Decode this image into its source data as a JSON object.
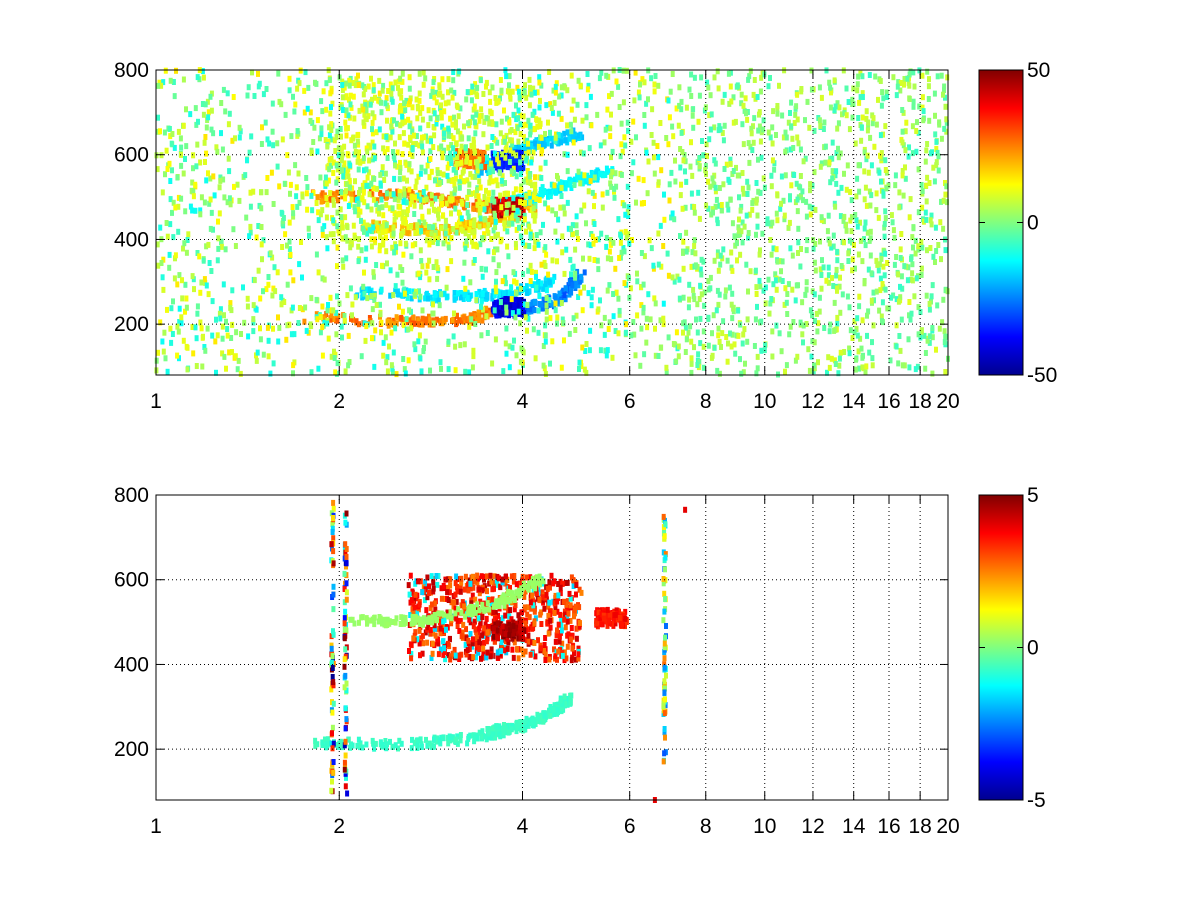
{
  "chart_data": [
    {
      "type": "heatmap",
      "title": "",
      "xlabel": "",
      "ylabel": "",
      "x_axis": {
        "scale": "log",
        "range": [
          1,
          20
        ],
        "ticks": [
          1,
          2,
          4,
          6,
          8,
          10,
          12,
          14,
          16,
          18,
          20
        ],
        "tick_labels": [
          "1",
          "2",
          "4",
          "6",
          "8",
          "10",
          "12",
          "14",
          "16",
          "18",
          "20"
        ]
      },
      "y_axis": {
        "scale": "linear",
        "range": [
          80,
          800
        ],
        "ticks": [
          200,
          400,
          600,
          800
        ],
        "tick_labels": [
          "200",
          "400",
          "600",
          "800"
        ]
      },
      "grid": "on",
      "grid_style": "dotted",
      "colormap": "jet",
      "colorbar": {
        "placement": "right",
        "range": [
          -50,
          50
        ],
        "tick_values": [
          50,
          0,
          -50
        ],
        "tick_labels": [
          "50",
          "0",
          "-50"
        ]
      },
      "background_where_missing": "white",
      "features": [
        {
          "kind": "arc",
          "x": [
            1.75,
            2.6,
            3.3,
            3.8
          ],
          "y": [
            215,
            205,
            212,
            245
          ],
          "value": 30
        },
        {
          "kind": "arc",
          "x": [
            3.6,
            4.0,
            4.6,
            5.0
          ],
          "y": [
            235,
            232,
            260,
            315
          ],
          "value": -30
        },
        {
          "kind": "arc",
          "x": [
            2.1,
            3.0,
            3.8,
            4.5
          ],
          "y": [
            275,
            265,
            270,
            305
          ],
          "value": -18
        },
        {
          "kind": "arc",
          "x": [
            1.8,
            2.5,
            3.2,
            3.8
          ],
          "y": [
            500,
            505,
            485,
            470
          ],
          "value": 30
        },
        {
          "kind": "arc",
          "x": [
            2.2,
            2.9,
            3.5,
            4.2
          ],
          "y": [
            430,
            420,
            440,
            475
          ],
          "value": 22
        },
        {
          "kind": "arc",
          "x": [
            3.6,
            4.2,
            4.9,
            5.6
          ],
          "y": [
            480,
            500,
            540,
            560
          ],
          "value": -15
        },
        {
          "kind": "arc",
          "x": [
            3.4,
            3.8,
            4.3,
            5.0
          ],
          "y": [
            560,
            600,
            625,
            650
          ],
          "value": -20
        },
        {
          "kind": "blob",
          "x": 3.8,
          "y": 475,
          "value": 48
        },
        {
          "kind": "blob",
          "x": 3.8,
          "y": 585,
          "value": -38
        },
        {
          "kind": "blob",
          "x": 3.8,
          "y": 240,
          "value": -45
        },
        {
          "kind": "blob",
          "x": 3.3,
          "y": 590,
          "value": 30
        },
        {
          "kind": "region",
          "x_range": [
            1.9,
            4.3
          ],
          "y_range": [
            380,
            780
          ],
          "value": 12
        },
        {
          "kind": "noise",
          "x_range": [
            1,
            7.2
          ],
          "y_range": [
            80,
            800
          ],
          "value_range": [
            -12,
            15
          ]
        },
        {
          "kind": "sparse_noise",
          "x_range": [
            7.2,
            20
          ],
          "y_range": [
            80,
            800
          ],
          "value_range": [
            -8,
            10
          ]
        }
      ]
    },
    {
      "type": "heatmap",
      "title": "",
      "xlabel": "",
      "ylabel": "",
      "x_axis": {
        "scale": "log",
        "range": [
          1,
          20
        ],
        "ticks": [
          1,
          2,
          4,
          6,
          8,
          10,
          12,
          14,
          16,
          18,
          20
        ],
        "tick_labels": [
          "1",
          "2",
          "4",
          "6",
          "8",
          "10",
          "12",
          "14",
          "16",
          "18",
          "20"
        ]
      },
      "y_axis": {
        "scale": "linear",
        "range": [
          80,
          800
        ],
        "ticks": [
          200,
          400,
          600,
          800
        ],
        "tick_labels": [
          "200",
          "400",
          "600",
          "800"
        ]
      },
      "grid": "on",
      "grid_style": "dotted",
      "colormap": "jet",
      "colorbar": {
        "placement": "right",
        "range": [
          -5,
          5
        ],
        "tick_values": [
          5,
          0,
          -5
        ],
        "tick_labels": [
          "5",
          "0",
          "-5"
        ]
      },
      "background_where_missing": "white",
      "features": [
        {
          "kind": "arc",
          "x": [
            1.8,
            2.6,
            3.4,
            4.2
          ],
          "y": [
            215,
            210,
            228,
            265
          ],
          "value": -0.8
        },
        {
          "kind": "arc",
          "x": [
            3.5,
            4.0,
            4.5,
            4.8
          ],
          "y": [
            240,
            255,
            290,
            320
          ],
          "value": -0.8
        },
        {
          "kind": "region",
          "x_range": [
            2.6,
            5.0
          ],
          "y_range": [
            410,
            610
          ],
          "value": 4.5
        },
        {
          "kind": "arc",
          "x": [
            2.1,
            2.8,
            3.6,
            4.3
          ],
          "y": [
            500,
            505,
            540,
            600
          ],
          "value": 0.3
        },
        {
          "kind": "blob",
          "x": 3.8,
          "y": 480,
          "value": 5
        },
        {
          "kind": "blob",
          "x": 5.6,
          "y": 510,
          "value": 4
        },
        {
          "kind": "column",
          "x": 1.95,
          "y_range": [
            100,
            790
          ],
          "value_range": [
            -5,
            5
          ]
        },
        {
          "kind": "column",
          "x": 2.05,
          "y_range": [
            90,
            790
          ],
          "value_range": [
            -5,
            5
          ]
        },
        {
          "kind": "column",
          "x": 6.85,
          "y_range": [
            160,
            760
          ],
          "value_range": [
            -3,
            3
          ]
        },
        {
          "kind": "point",
          "x": 7.4,
          "y": 765,
          "value": 4
        },
        {
          "kind": "point",
          "x": 6.6,
          "y": 80,
          "value": 4
        }
      ]
    }
  ]
}
